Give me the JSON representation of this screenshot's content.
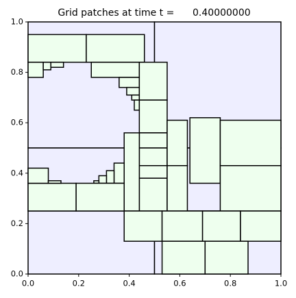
{
  "chart_data": {
    "type": "patches",
    "title": "Grid patches at time t =      0.40000000",
    "xlim": [
      0,
      1
    ],
    "ylim": [
      0,
      1
    ],
    "xticks": [
      {
        "value": 0,
        "label": "0.0"
      },
      {
        "value": 0.2,
        "label": "0.2"
      },
      {
        "value": 0.4,
        "label": "0.4"
      },
      {
        "value": 0.6,
        "label": "0.6"
      },
      {
        "value": 0.8,
        "label": "0.8"
      },
      {
        "value": 1,
        "label": "1.0"
      }
    ],
    "yticks": [
      {
        "value": 0,
        "label": "0.0"
      },
      {
        "value": 0.2,
        "label": "0.2"
      },
      {
        "value": 0.4,
        "label": "0.4"
      },
      {
        "value": 0.6,
        "label": "0.6"
      },
      {
        "value": 0.8,
        "label": "0.8"
      },
      {
        "value": 1,
        "label": "1.0"
      }
    ],
    "levels": [
      {
        "color": "#eeeeff",
        "rects": [
          [
            0,
            0.5,
            0.5,
            1
          ],
          [
            0.5,
            1,
            0.5,
            1
          ],
          [
            0,
            1,
            0.25,
            0.5
          ],
          [
            0,
            0.5,
            0,
            0.25
          ],
          [
            0.5,
            1,
            0,
            0.25
          ]
        ]
      },
      {
        "color": "#eeffee",
        "rects": [
          [
            0,
            0.23,
            0.84,
            0.95
          ],
          [
            0.23,
            0.46,
            0.84,
            0.95
          ],
          [
            0,
            0.06,
            0.78,
            0.84
          ],
          [
            0.06,
            0.09,
            0.81,
            0.84
          ],
          [
            0.09,
            0.14,
            0.82,
            0.84
          ],
          [
            0.25,
            0.44,
            0.78,
            0.84
          ],
          [
            0.36,
            0.44,
            0.74,
            0.78
          ],
          [
            0.39,
            0.44,
            0.71,
            0.74
          ],
          [
            0.41,
            0.44,
            0.69,
            0.71
          ],
          [
            0.42,
            0.44,
            0.65,
            0.69
          ],
          [
            0.44,
            0.55,
            0.69,
            0.84
          ],
          [
            0.44,
            0.55,
            0.56,
            0.69
          ],
          [
            0.44,
            0.55,
            0.5,
            0.56
          ],
          [
            0.44,
            0.55,
            0.43,
            0.5
          ],
          [
            0.44,
            0.55,
            0.38,
            0.43
          ],
          [
            0.44,
            0.55,
            0.25,
            0.38
          ],
          [
            0.38,
            0.44,
            0.25,
            0.56
          ],
          [
            0.34,
            0.38,
            0.36,
            0.44
          ],
          [
            0.31,
            0.34,
            0.36,
            0.41
          ],
          [
            0.28,
            0.31,
            0.36,
            0.39
          ],
          [
            0.26,
            0.28,
            0.36,
            0.37
          ],
          [
            0,
            0.19,
            0.25,
            0.36
          ],
          [
            0.19,
            0.38,
            0.25,
            0.36
          ],
          [
            0,
            0.08,
            0.36,
            0.42
          ],
          [
            0.08,
            0.13,
            0.36,
            0.37
          ],
          [
            0.55,
            0.63,
            0.43,
            0.61
          ],
          [
            0.64,
            0.76,
            0.36,
            0.62
          ],
          [
            0.76,
            1,
            0.43,
            0.61
          ],
          [
            0.55,
            0.63,
            0.25,
            0.43
          ],
          [
            0.76,
            1,
            0.25,
            0.43
          ],
          [
            0.38,
            0.53,
            0.13,
            0.25
          ],
          [
            0.53,
            0.69,
            0.13,
            0.25
          ],
          [
            0.69,
            0.84,
            0.13,
            0.25
          ],
          [
            0.84,
            1,
            0.13,
            0.25
          ],
          [
            0.53,
            0.7,
            0,
            0.13
          ],
          [
            0.7,
            0.87,
            0,
            0.13
          ]
        ]
      }
    ]
  }
}
